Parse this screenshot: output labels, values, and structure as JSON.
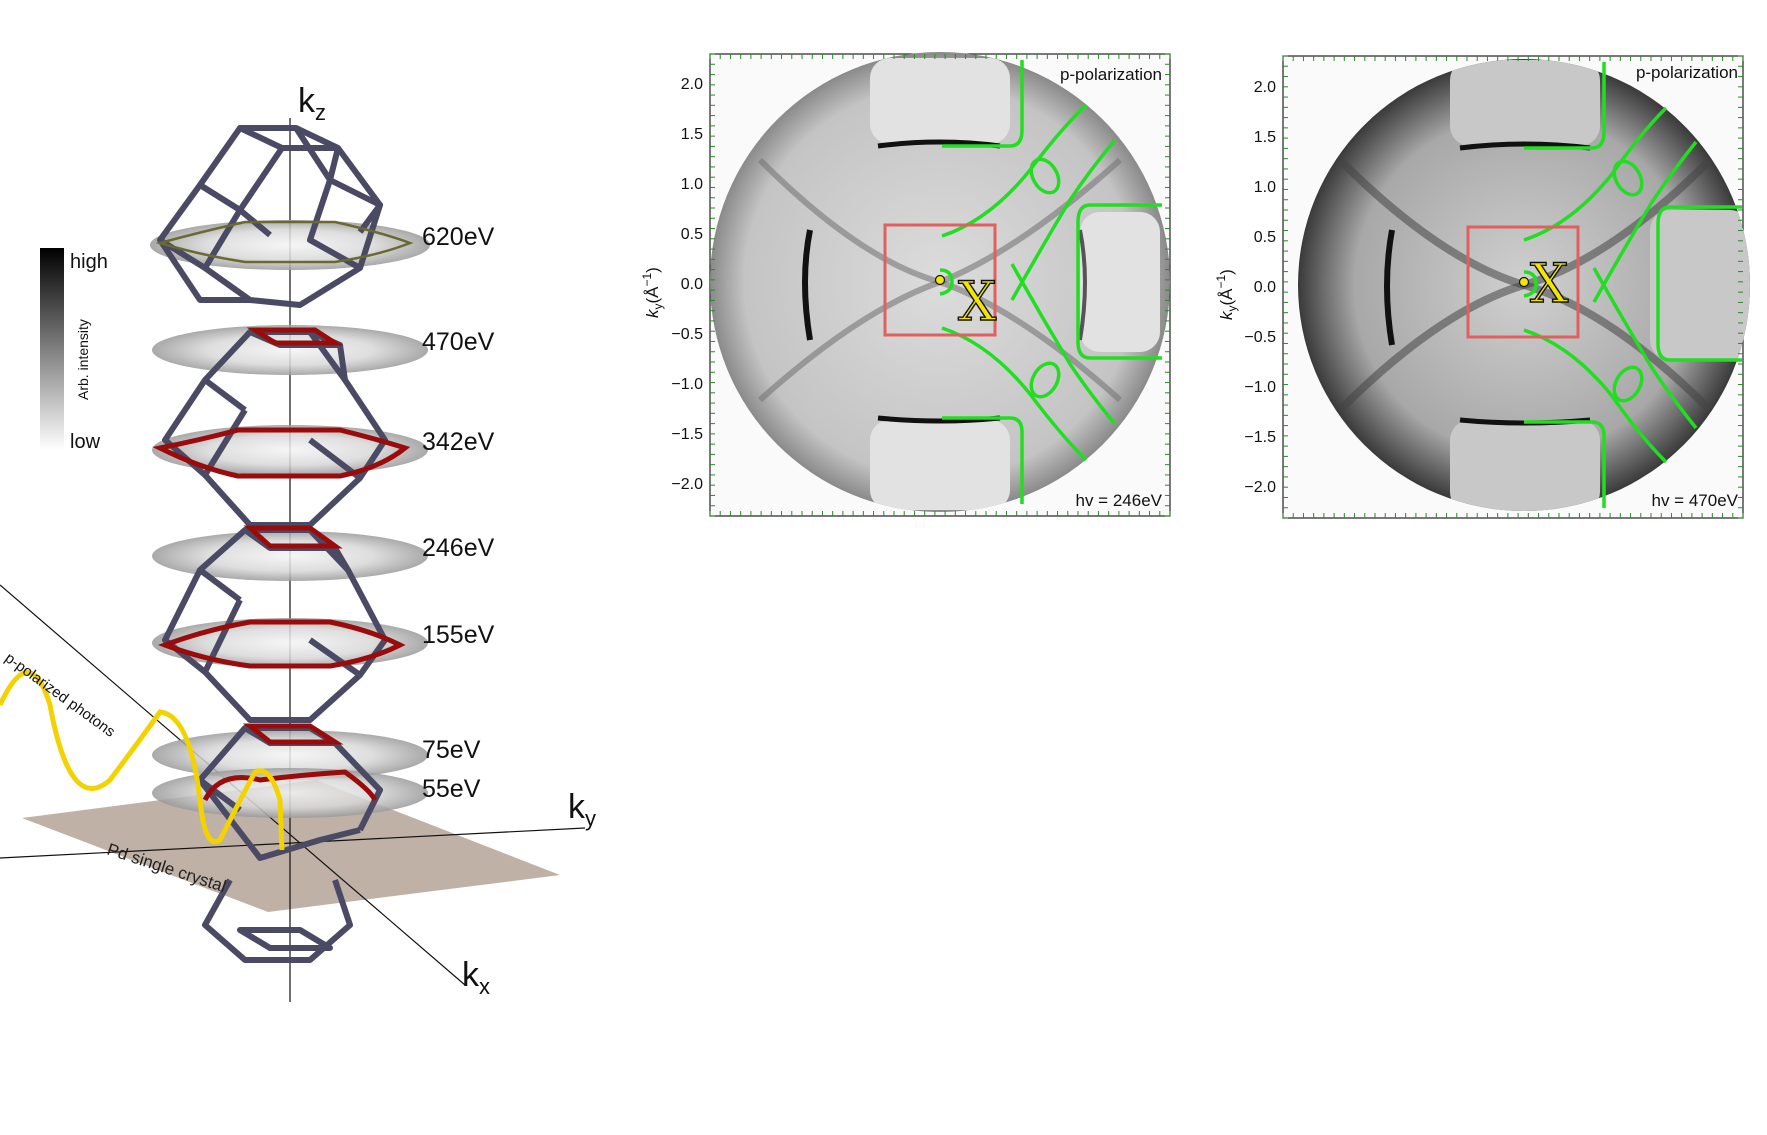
{
  "diagram": {
    "axes": {
      "kz": "k",
      "kz_sub": "z",
      "ky": "k",
      "ky_sub": "y",
      "kx": "k",
      "kx_sub": "x"
    },
    "energy_slices": [
      "620eV",
      "470eV",
      "342eV",
      "246eV",
      "155eV",
      "75eV",
      "55eV"
    ],
    "colorbar": {
      "high": "high",
      "low": "low",
      "label": "Arb. intensity"
    },
    "photons_label": "p-polarized  photons",
    "crystal_label": "Pd single crystal",
    "colors": {
      "frame": "#4a4a64",
      "fermi_red": "#9a0c0c",
      "photon": "#f2d300",
      "crystal": "#b8a89b"
    }
  },
  "panels": [
    {
      "polarization": "p-polarization",
      "energy": "hv = 246eV"
    },
    {
      "polarization": "p-polarization",
      "energy": "hv = 470eV"
    }
  ],
  "panel_axis": {
    "ylabel": "k",
    "ylabel_sub": "y",
    "ylabel_unit": "(Å",
    "ylabel_exp": "−1",
    "ylabel_close": ")",
    "yticks": [
      "2.0",
      "1.5",
      "1.0",
      "0.5",
      "0.0",
      "−0.5",
      "−1.0",
      "−1.5",
      "−2.0"
    ]
  },
  "point_label": "X",
  "panel_colors": {
    "contour": "#22dd22",
    "box": "#e06060",
    "point": "#f2e600"
  }
}
